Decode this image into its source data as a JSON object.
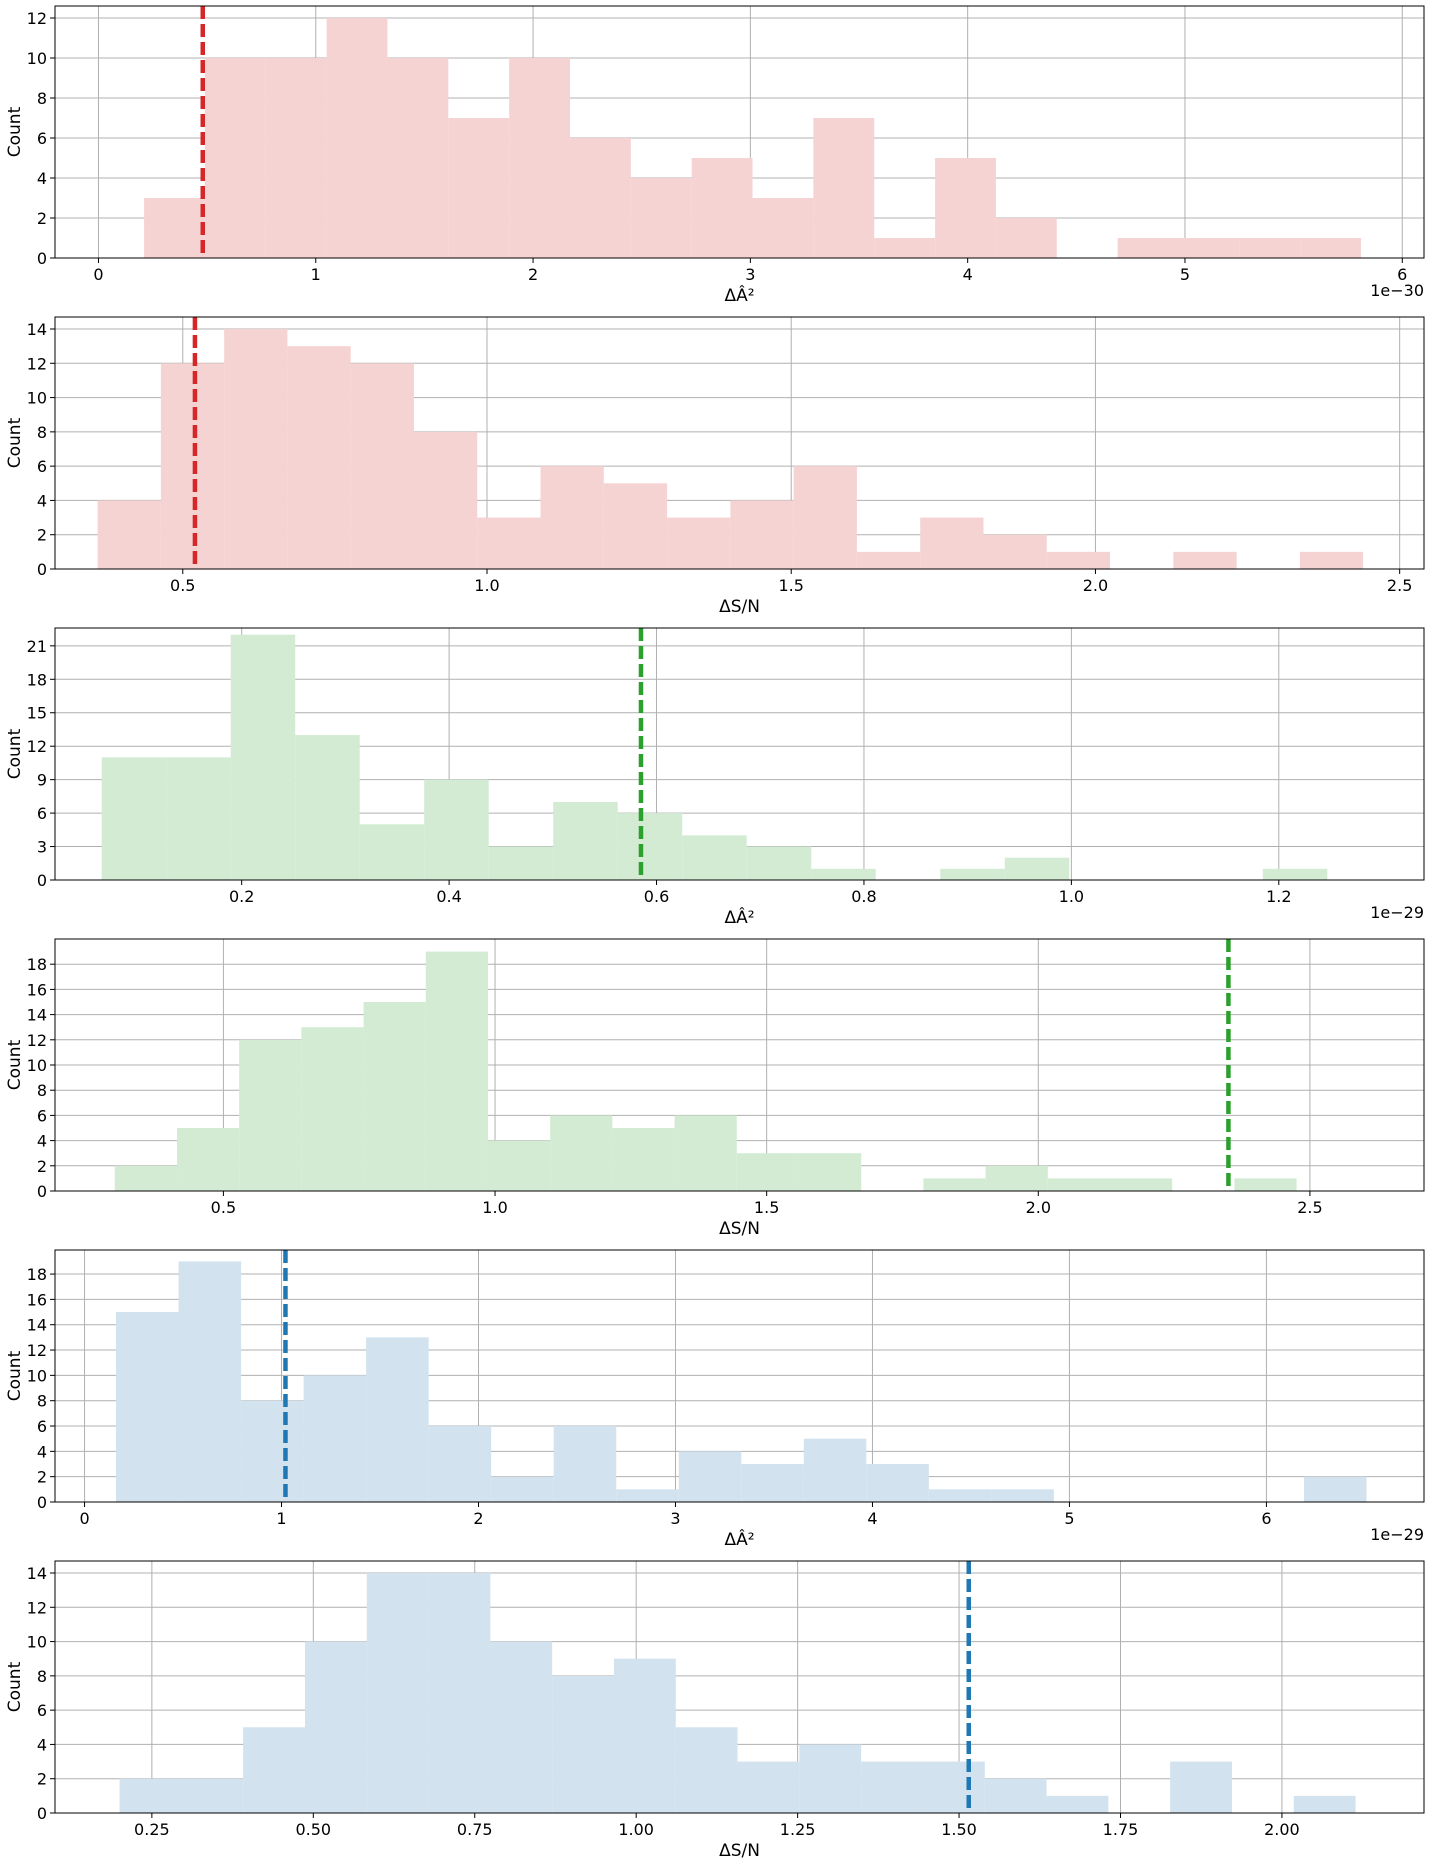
{
  "chart_data": [
    {
      "type": "bar",
      "xlabel": "ΔÂ²",
      "ylabel": "Count",
      "offset_text": "1e−30",
      "xlim": [
        -0.2,
        6.1
      ],
      "ylim": [
        0,
        12.6
      ],
      "xticks": [
        0,
        1,
        2,
        3,
        4,
        5,
        6
      ],
      "xtick_labels": [
        "0",
        "1",
        "2",
        "3",
        "4",
        "5",
        "6"
      ],
      "yticks": [
        0,
        2,
        4,
        6,
        8,
        10,
        12
      ],
      "ytick_labels": [
        "0",
        "2",
        "4",
        "6",
        "8",
        "10",
        "12"
      ],
      "bin_start": 0.21,
      "bin_width": 0.28,
      "counts": [
        3,
        10,
        10,
        12,
        10,
        7,
        10,
        6,
        4,
        5,
        3,
        7,
        1,
        5,
        2,
        0,
        1,
        1,
        1,
        1
      ],
      "vline": 0.48,
      "fill_color": "#f5d3d3",
      "line_color": "#d62728",
      "grid": true
    },
    {
      "type": "bar",
      "xlabel": "ΔS/N",
      "ylabel": "Count",
      "offset_text": "",
      "xlim": [
        0.29,
        2.54
      ],
      "ylim": [
        0,
        14.7
      ],
      "xticks": [
        0.5,
        1.0,
        1.5,
        2.0,
        2.5
      ],
      "xtick_labels": [
        "0.5",
        "1.0",
        "1.5",
        "2.0",
        "2.5"
      ],
      "yticks": [
        0,
        2,
        4,
        6,
        8,
        10,
        12,
        14
      ],
      "ytick_labels": [
        "0",
        "2",
        "4",
        "6",
        "8",
        "10",
        "12",
        "14"
      ],
      "bin_start": 0.36,
      "bin_width": 0.104,
      "counts": [
        4,
        12,
        14,
        13,
        12,
        8,
        3,
        6,
        5,
        3,
        4,
        6,
        1,
        3,
        2,
        1,
        0,
        1,
        0,
        1
      ],
      "vline": 0.52,
      "fill_color": "#f5d3d3",
      "line_color": "#d62728",
      "grid": true
    },
    {
      "type": "bar",
      "xlabel": "ΔÂ²",
      "ylabel": "Count",
      "offset_text": "1e−29",
      "xlim": [
        0.02,
        1.34
      ],
      "ylim": [
        0,
        22.6
      ],
      "xticks": [
        0.2,
        0.4,
        0.6,
        0.8,
        1.0,
        1.2
      ],
      "xtick_labels": [
        "0.2",
        "0.4",
        "0.6",
        "0.8",
        "1.0",
        "1.2"
      ],
      "yticks": [
        0,
        3,
        6,
        9,
        12,
        15,
        18,
        21
      ],
      "ytick_labels": [
        "0",
        "3",
        "6",
        "9",
        "12",
        "15",
        "18",
        "21"
      ],
      "bin_start": 0.065,
      "bin_width": 0.0622,
      "counts": [
        11,
        11,
        22,
        13,
        5,
        9,
        3,
        7,
        6,
        4,
        3,
        1,
        0,
        1,
        2,
        0,
        0,
        0,
        1
      ],
      "vline": 0.585,
      "fill_color": "#d3ebd3",
      "line_color": "#2ca02c",
      "grid": true
    },
    {
      "type": "bar",
      "xlabel": "ΔS/N",
      "ylabel": "Count",
      "offset_text": "",
      "xlim": [
        0.19,
        2.71
      ],
      "ylim": [
        0,
        20
      ],
      "xticks": [
        0.5,
        1.0,
        1.5,
        2.0,
        2.5
      ],
      "xtick_labels": [
        "0.5",
        "1.0",
        "1.5",
        "2.0",
        "2.5"
      ],
      "yticks": [
        0,
        2,
        4,
        6,
        8,
        10,
        12,
        14,
        16,
        18
      ],
      "ytick_labels": [
        "0",
        "2",
        "4",
        "6",
        "8",
        "10",
        "12",
        "14",
        "16",
        "18"
      ],
      "bin_start": 0.3,
      "bin_width": 0.1145,
      "counts": [
        2,
        5,
        12,
        13,
        15,
        19,
        4,
        6,
        5,
        6,
        3,
        3,
        0,
        1,
        2,
        1,
        1,
        0,
        1
      ],
      "vline": 2.35,
      "fill_color": "#d3ebd3",
      "line_color": "#2ca02c",
      "grid": true
    },
    {
      "type": "bar",
      "xlabel": "ΔÂ²",
      "ylabel": "Count",
      "offset_text": "1e−29",
      "xlim": [
        -0.15,
        6.8
      ],
      "ylim": [
        0,
        19.9
      ],
      "xticks": [
        0,
        1,
        2,
        3,
        4,
        5,
        6
      ],
      "xtick_labels": [
        "0",
        "1",
        "2",
        "3",
        "4",
        "5",
        "6"
      ],
      "yticks": [
        0,
        2,
        4,
        6,
        8,
        10,
        12,
        14,
        16,
        18
      ],
      "ytick_labels": [
        "0",
        "2",
        "4",
        "6",
        "8",
        "10",
        "12",
        "14",
        "16",
        "18"
      ],
      "bin_start": 0.16,
      "bin_width": 0.3174,
      "counts": [
        15,
        19,
        8,
        10,
        13,
        6,
        2,
        6,
        1,
        4,
        3,
        5,
        3,
        1,
        1,
        0,
        0,
        0,
        0,
        2
      ],
      "vline": 1.02,
      "fill_color": "#d2e2ee",
      "line_color": "#1f77b4",
      "grid": true
    },
    {
      "type": "bar",
      "xlabel": "ΔS/N",
      "ylabel": "Count",
      "offset_text": "",
      "xlim": [
        0.1,
        2.22
      ],
      "ylim": [
        0,
        14.7
      ],
      "xticks": [
        0.25,
        0.5,
        0.75,
        1.0,
        1.25,
        1.5,
        1.75,
        2.0
      ],
      "xtick_labels": [
        "0.25",
        "0.50",
        "0.75",
        "1.00",
        "1.25",
        "1.50",
        "1.75",
        "2.00"
      ],
      "yticks": [
        0,
        2,
        4,
        6,
        8,
        10,
        12,
        14
      ],
      "ytick_labels": [
        "0",
        "2",
        "4",
        "6",
        "8",
        "10",
        "12",
        "14"
      ],
      "bin_start": 0.2,
      "bin_width": 0.0957,
      "counts": [
        2,
        2,
        5,
        10,
        14,
        14,
        10,
        8,
        9,
        5,
        3,
        4,
        3,
        3,
        2,
        1,
        0,
        3,
        0,
        1
      ],
      "vline": 1.515,
      "fill_color": "#d2e2ee",
      "line_color": "#1f77b4",
      "grid": true
    }
  ]
}
